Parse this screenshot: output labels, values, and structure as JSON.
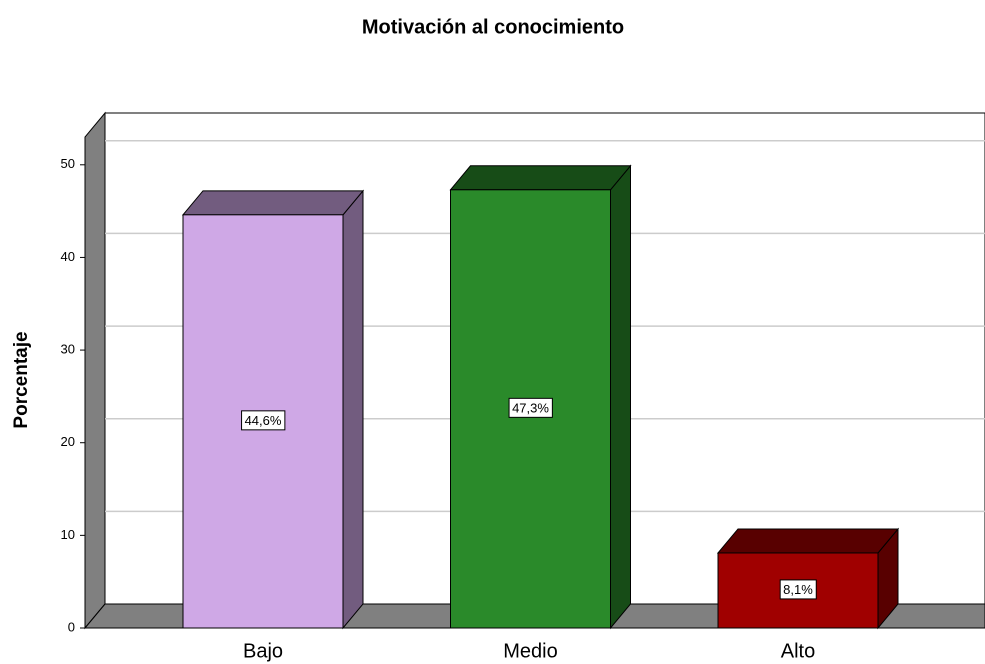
{
  "chart_data": {
    "type": "bar3d",
    "title": "Motivación al conocimiento",
    "ylabel": "Porcentaje",
    "categories": [
      "Bajo",
      "Medio",
      "Alto"
    ],
    "values": [
      44.6,
      47.3,
      8.1
    ],
    "value_labels": [
      "44,6%",
      "47,3%",
      "8,1%"
    ],
    "colors": [
      "#cfa8e6",
      "#2a8a2a",
      "#a00000"
    ],
    "ylim": [
      0,
      53
    ],
    "yticks": [
      0,
      10,
      20,
      30,
      40,
      50
    ],
    "grid": true
  }
}
